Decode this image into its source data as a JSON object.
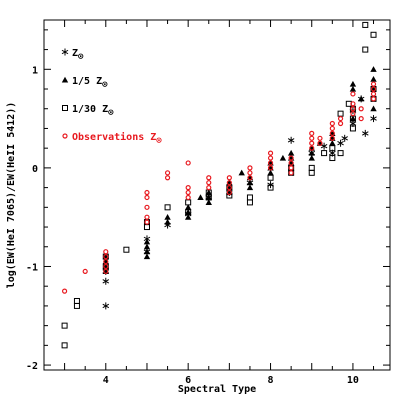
{
  "chart_data": {
    "type": "scatter",
    "title": "",
    "xlabel": "Spectral Type",
    "ylabel": "log(EW(HeI 7065)/EW(HeII 5412))",
    "xlim": [
      2.5,
      10.9
    ],
    "ylim": [
      -2.05,
      1.5
    ],
    "xticks": [
      4,
      6,
      8,
      10
    ],
    "yticks": [
      -2,
      -1,
      0,
      1
    ],
    "grid": false,
    "legend_position": "top-left",
    "colors": {
      "model": "#000000",
      "observations": "#e8191f"
    },
    "legend": [
      {
        "key": "solar",
        "label": "Z",
        "suffix": "⊙",
        "marker": "star",
        "color": "#000000"
      },
      {
        "key": "fifth",
        "label": "1/5 Z",
        "suffix": "⊙",
        "marker": "triangle",
        "color": "#000000"
      },
      {
        "key": "thirtieth",
        "label": "1/30 Z",
        "suffix": "⊙",
        "marker": "square",
        "color": "#000000"
      },
      {
        "key": "obs",
        "label": "Observations Z",
        "suffix": "⊙",
        "marker": "circle",
        "color": "#e8191f"
      }
    ],
    "series": [
      {
        "name": "Z⊙",
        "marker": "star",
        "color": "#000000",
        "x": [
          4.0,
          4.0,
          4.0,
          5.0,
          5.0,
          5.5,
          6.0,
          6.5,
          7.0,
          7.5,
          8.0,
          8.5,
          9.0,
          9.3,
          9.5,
          9.7,
          10.0,
          10.2,
          10.3,
          10.5,
          10.0,
          9.8
        ],
        "y": [
          -1.4,
          -1.05,
          -1.15,
          -0.85,
          -0.72,
          -0.58,
          -0.47,
          -0.3,
          -0.25,
          -0.15,
          -0.17,
          0.28,
          0.15,
          0.22,
          0.15,
          0.25,
          0.45,
          0.7,
          0.35,
          0.5,
          0.58,
          0.3
        ]
      },
      {
        "name": "1/5 Z⊙",
        "marker": "triangle",
        "color": "#000000",
        "x": [
          4.0,
          4.0,
          4.0,
          4.0,
          5.0,
          5.0,
          5.0,
          5.0,
          5.5,
          5.5,
          6.0,
          6.0,
          6.0,
          6.3,
          6.5,
          6.5,
          6.5,
          7.0,
          7.0,
          7.0,
          7.3,
          7.5,
          7.5,
          7.5,
          8.0,
          8.0,
          8.0,
          8.3,
          8.5,
          8.5,
          8.5,
          9.0,
          9.0,
          9.0,
          9.2,
          9.5,
          9.5,
          9.5,
          10.0,
          10.0,
          10.0,
          10.2,
          10.5,
          10.5,
          10.5,
          10.5
        ],
        "y": [
          -0.9,
          -0.95,
          -1.0,
          -1.05,
          -0.75,
          -0.8,
          -0.85,
          -0.9,
          -0.5,
          -0.55,
          -0.4,
          -0.45,
          -0.5,
          -0.3,
          -0.25,
          -0.3,
          -0.35,
          -0.15,
          -0.2,
          -0.25,
          -0.05,
          -0.1,
          -0.15,
          -0.2,
          0.05,
          0.0,
          -0.05,
          0.1,
          0.15,
          0.1,
          0.05,
          0.2,
          0.15,
          0.1,
          0.25,
          0.35,
          0.3,
          0.25,
          0.85,
          0.8,
          0.5,
          0.7,
          1.0,
          0.9,
          0.8,
          0.6
        ]
      },
      {
        "name": "1/30 Z⊙",
        "marker": "square",
        "color": "#000000",
        "x": [
          3.0,
          3.0,
          3.3,
          3.3,
          4.0,
          4.0,
          4.5,
          5.0,
          5.0,
          5.5,
          6.0,
          6.0,
          6.5,
          6.5,
          7.0,
          7.0,
          7.5,
          7.5,
          8.0,
          8.0,
          8.5,
          8.5,
          9.0,
          9.0,
          9.3,
          9.5,
          9.5,
          9.7,
          10.0,
          10.0,
          10.0,
          10.3,
          10.3,
          10.5,
          10.5,
          10.5,
          9.9,
          9.7
        ],
        "y": [
          -1.8,
          -1.6,
          -1.35,
          -1.4,
          -0.9,
          -1.0,
          -0.83,
          -0.55,
          -0.6,
          -0.4,
          -0.35,
          -0.45,
          -0.25,
          -0.3,
          -0.2,
          -0.28,
          -0.3,
          -0.35,
          -0.1,
          -0.2,
          0.0,
          -0.05,
          0.0,
          -0.05,
          0.15,
          0.2,
          0.1,
          0.15,
          0.4,
          0.5,
          0.6,
          1.2,
          1.45,
          1.35,
          0.8,
          0.7,
          0.65,
          0.55
        ]
      },
      {
        "name": "Observations Z⊙",
        "marker": "circle",
        "color": "#e8191f",
        "x": [
          3.0,
          3.5,
          4.0,
          4.0,
          4.0,
          4.0,
          4.0,
          5.0,
          5.0,
          5.0,
          5.0,
          5.0,
          5.5,
          5.5,
          6.0,
          6.0,
          6.0,
          6.0,
          6.5,
          6.5,
          6.5,
          7.0,
          7.0,
          7.0,
          7.0,
          7.5,
          7.5,
          7.5,
          8.0,
          8.0,
          8.0,
          8.0,
          8.5,
          8.5,
          8.5,
          8.5,
          9.0,
          9.0,
          9.0,
          9.0,
          9.2,
          9.2,
          9.5,
          9.5,
          9.5,
          9.5,
          9.7,
          9.7,
          10.0,
          10.0,
          10.0,
          10.0,
          10.2,
          10.2,
          10.5,
          10.5,
          10.5,
          10.5
        ],
        "y": [
          -1.25,
          -1.05,
          -0.85,
          -0.9,
          -0.95,
          -1.0,
          -1.05,
          -0.25,
          -0.3,
          -0.4,
          -0.5,
          -0.55,
          -0.05,
          -0.1,
          0.05,
          -0.2,
          -0.25,
          -0.3,
          -0.1,
          -0.15,
          -0.2,
          -0.1,
          -0.15,
          -0.2,
          -0.25,
          0.0,
          -0.05,
          -0.1,
          0.15,
          0.1,
          0.05,
          0.0,
          0.1,
          0.05,
          0.0,
          -0.05,
          0.35,
          0.3,
          0.25,
          0.2,
          0.3,
          0.25,
          0.45,
          0.4,
          0.35,
          0.3,
          0.5,
          0.45,
          0.75,
          0.65,
          0.6,
          0.55,
          0.6,
          0.5,
          0.85,
          0.8,
          0.75,
          0.7
        ]
      }
    ]
  }
}
